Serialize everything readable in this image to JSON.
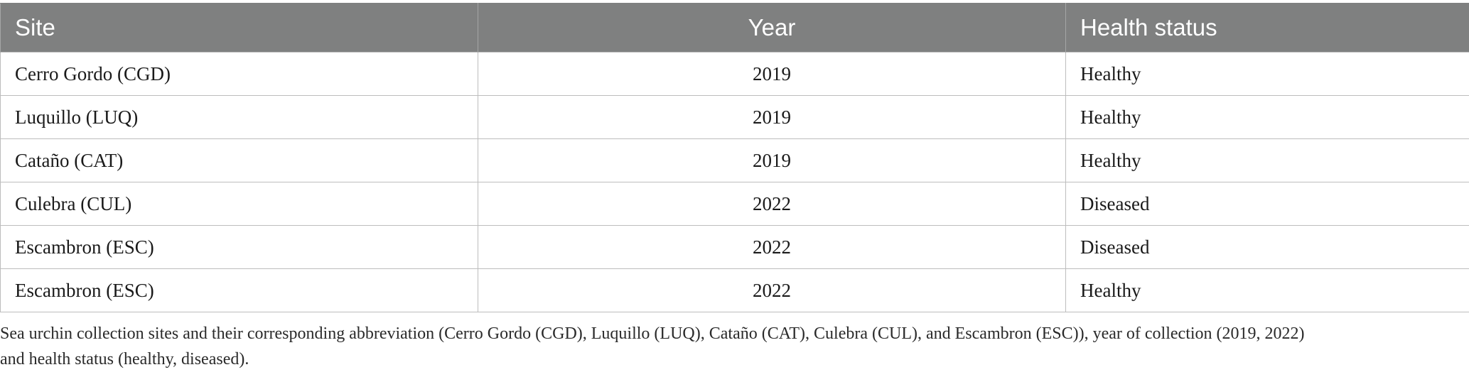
{
  "table": {
    "headers": [
      "Site",
      "Year",
      "Health status"
    ],
    "rows": [
      [
        "Cerro Gordo (CGD)",
        "2019",
        "Healthy"
      ],
      [
        "Luquillo (LUQ)",
        "2019",
        "Healthy"
      ],
      [
        "Cataño (CAT)",
        "2019",
        "Healthy"
      ],
      [
        "Culebra (CUL)",
        "2022",
        "Diseased"
      ],
      [
        "Escambron (ESC)",
        "2022",
        "Diseased"
      ],
      [
        "Escambron (ESC)",
        "2022",
        "Healthy"
      ]
    ]
  },
  "caption": {
    "line1": "Sea urchin collection sites and their corresponding abbreviation (Cerro Gordo (CGD), Luquillo (LUQ), Cataño (CAT), Culebra (CUL), and Escambron (ESC)), year of collection (2019, 2022)",
    "line2": "and health status (healthy, diseased)."
  }
}
